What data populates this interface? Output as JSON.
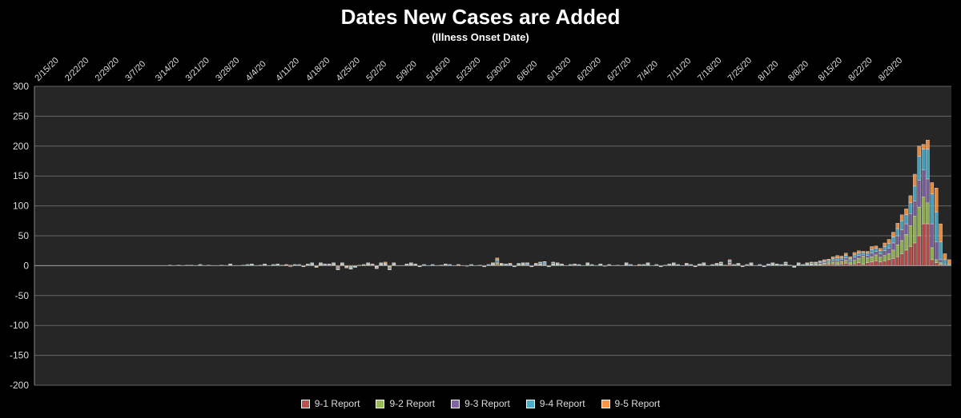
{
  "chart_data": {
    "type": "bar",
    "stacked": true,
    "title": "Dates New Cases are Added",
    "subtitle": "(Illness Onset Date)",
    "xlabel": "",
    "ylabel": "",
    "ylim": [
      -200,
      300
    ],
    "yticks": [
      300,
      250,
      200,
      150,
      100,
      50,
      0,
      -50,
      -100,
      -150,
      -200
    ],
    "grid": true,
    "legend_position": "bottom",
    "x_tick_labels": [
      "2/15/20",
      "2/22/20",
      "2/29/20",
      "3/7/20",
      "3/14/20",
      "3/21/20",
      "3/28/20",
      "4/4/20",
      "4/11/20",
      "4/18/20",
      "4/25/20",
      "5/2/20",
      "5/9/20",
      "5/16/20",
      "5/23/20",
      "5/30/20",
      "6/6/20",
      "6/13/20",
      "6/20/20",
      "6/27/20",
      "7/4/20",
      "7/11/20",
      "7/18/20",
      "7/25/20",
      "8/1/20",
      "8/8/20",
      "8/15/20",
      "8/22/20",
      "8/29/20"
    ],
    "start_label": "2/15/20",
    "series": [
      {
        "name": "9-1 Report",
        "color": "#c0504d"
      },
      {
        "name": "9-2 Report",
        "color": "#9bbb59"
      },
      {
        "name": "9-3 Report",
        "color": "#8064a2"
      },
      {
        "name": "9-4 Report",
        "color": "#4bacc6"
      },
      {
        "name": "9-5 Report",
        "color": "#f79646"
      }
    ],
    "stacks": [
      [
        0,
        0,
        0,
        0,
        0
      ],
      [
        0,
        0,
        0,
        0,
        0
      ],
      [
        0,
        0,
        0,
        0,
        0
      ],
      [
        0,
        0,
        0,
        0,
        0
      ],
      [
        0,
        0,
        0,
        0,
        0
      ],
      [
        0,
        0,
        0,
        0,
        0
      ],
      [
        0,
        0,
        0,
        0,
        0
      ],
      [
        0,
        0,
        0,
        0,
        0
      ],
      [
        0,
        0,
        0,
        0,
        0
      ],
      [
        0,
        0,
        0,
        0,
        0
      ],
      [
        0,
        0,
        0,
        0,
        0
      ],
      [
        0,
        0,
        0,
        0,
        0
      ],
      [
        0,
        0,
        0,
        0,
        0
      ],
      [
        0,
        0,
        0,
        0,
        0
      ],
      [
        0,
        0,
        0,
        0,
        0
      ],
      [
        0,
        0,
        0,
        0,
        0
      ],
      [
        0,
        0,
        0,
        0,
        0
      ],
      [
        0,
        0,
        0,
        0,
        0
      ],
      [
        0,
        0,
        0,
        0,
        0
      ],
      [
        0,
        0,
        0,
        0,
        0
      ],
      [
        0,
        0,
        0,
        0,
        0
      ],
      [
        0,
        0,
        0,
        0,
        0
      ],
      [
        0,
        0,
        0,
        0,
        0
      ],
      [
        0,
        0,
        0,
        0,
        0
      ],
      [
        0,
        0,
        0,
        0,
        0
      ],
      [
        0,
        0,
        0,
        0,
        0
      ],
      [
        0,
        0,
        0,
        0,
        0
      ],
      [
        0,
        0,
        0,
        0,
        0
      ],
      [
        0,
        0,
        0,
        0,
        0
      ],
      [
        0,
        0,
        0,
        0,
        0
      ],
      [
        0,
        0,
        0,
        0,
        0
      ],
      [
        0,
        1,
        0,
        0,
        0
      ],
      [
        0,
        0,
        0,
        0,
        0
      ],
      [
        0,
        1,
        0,
        0,
        0
      ],
      [
        0,
        0,
        0,
        0,
        0
      ],
      [
        0,
        1,
        0,
        0,
        0
      ],
      [
        0,
        0,
        0,
        1,
        0
      ],
      [
        0,
        0,
        0,
        0,
        0
      ],
      [
        0,
        0,
        1,
        1,
        0
      ],
      [
        0,
        0,
        0,
        0,
        0
      ],
      [
        0,
        0,
        0,
        1,
        0
      ],
      [
        0,
        0,
        0,
        0,
        0
      ],
      [
        0,
        0,
        0,
        0,
        0
      ],
      [
        1,
        0,
        0,
        0,
        0
      ],
      [
        0,
        0,
        0,
        0,
        0
      ],
      [
        0,
        1,
        0,
        1,
        1
      ],
      [
        0,
        0,
        0,
        0,
        0
      ],
      [
        0,
        0,
        0,
        0,
        0
      ],
      [
        0,
        1,
        0,
        0,
        0
      ],
      [
        0,
        0,
        1,
        1,
        0
      ],
      [
        0,
        1,
        0,
        1,
        1
      ],
      [
        0,
        0,
        0,
        0,
        0
      ],
      [
        0,
        0,
        0,
        1,
        0
      ],
      [
        0,
        1,
        0,
        1,
        1
      ],
      [
        0,
        0,
        0,
        0,
        0
      ],
      [
        1,
        0,
        0,
        1,
        0
      ],
      [
        0,
        0,
        1,
        1,
        1
      ],
      [
        0,
        1,
        0,
        0,
        0
      ],
      [
        0,
        0,
        0,
        1,
        1
      ],
      [
        -2,
        0,
        0,
        0,
        1
      ],
      [
        0,
        1,
        0,
        1,
        0
      ],
      [
        1,
        0,
        1,
        0,
        0
      ],
      [
        -1,
        0,
        0,
        0,
        -1
      ],
      [
        0,
        1,
        1,
        1,
        0
      ],
      [
        1,
        1,
        1,
        1,
        1
      ],
      [
        -1,
        -1,
        0,
        0,
        -1
      ],
      [
        1,
        1,
        1,
        1,
        1
      ],
      [
        0,
        1,
        1,
        1,
        0
      ],
      [
        1,
        0,
        1,
        0,
        1
      ],
      [
        1,
        1,
        1,
        1,
        1
      ],
      [
        -2,
        -1,
        -2,
        -1,
        -1
      ],
      [
        1,
        1,
        1,
        1,
        1
      ],
      [
        -1,
        -1,
        -1,
        0,
        -1
      ],
      [
        -1,
        -2,
        -1,
        -1,
        -1
      ],
      [
        -1,
        -1,
        0,
        -1,
        0
      ],
      [
        0,
        0,
        0,
        1,
        0
      ],
      [
        1,
        0,
        0,
        0,
        1
      ],
      [
        1,
        1,
        1,
        1,
        1
      ],
      [
        1,
        0,
        1,
        0,
        1
      ],
      [
        -1,
        -1,
        -1,
        -1,
        -1
      ],
      [
        1,
        1,
        1,
        1,
        1
      ],
      [
        1,
        1,
        1,
        1,
        2
      ],
      [
        -1,
        -2,
        -2,
        -1,
        -1
      ],
      [
        1,
        1,
        1,
        1,
        1
      ],
      [
        0,
        0,
        0,
        0,
        0
      ],
      [
        0,
        0,
        0,
        0,
        0
      ],
      [
        0,
        1,
        0,
        1,
        1
      ],
      [
        1,
        1,
        1,
        1,
        1
      ],
      [
        0,
        1,
        0,
        1,
        1
      ],
      [
        0,
        0,
        -1,
        0,
        -1
      ],
      [
        0,
        1,
        0,
        1,
        0
      ],
      [
        0,
        0,
        0,
        0,
        0
      ],
      [
        0,
        1,
        0,
        1,
        0
      ],
      [
        0,
        0,
        0,
        0,
        0
      ],
      [
        0,
        0,
        0,
        1,
        0
      ],
      [
        1,
        0,
        1,
        0,
        1
      ],
      [
        0,
        1,
        0,
        1,
        0
      ],
      [
        0,
        0,
        0,
        0,
        0
      ],
      [
        0,
        1,
        0,
        0,
        1
      ],
      [
        0,
        0,
        0,
        0,
        0
      ],
      [
        -1,
        0,
        0,
        0,
        0
      ],
      [
        0,
        1,
        0,
        1,
        0
      ],
      [
        0,
        0,
        0,
        0,
        0
      ],
      [
        0,
        1,
        0,
        0,
        0
      ],
      [
        -1,
        0,
        0,
        0,
        -1
      ],
      [
        0,
        1,
        0,
        1,
        0
      ],
      [
        1,
        1,
        1,
        1,
        1
      ],
      [
        2,
        3,
        3,
        2,
        3
      ],
      [
        1,
        1,
        0,
        1,
        1
      ],
      [
        0,
        1,
        1,
        1,
        0
      ],
      [
        0,
        1,
        1,
        1,
        1
      ],
      [
        -1,
        0,
        0,
        -1,
        0
      ],
      [
        1,
        1,
        1,
        1,
        0
      ],
      [
        1,
        1,
        1,
        1,
        1
      ],
      [
        0,
        1,
        1,
        2,
        1
      ],
      [
        -1,
        0,
        0,
        0,
        -1
      ],
      [
        0,
        1,
        1,
        1,
        1
      ],
      [
        1,
        1,
        1,
        2,
        1
      ],
      [
        1,
        1,
        2,
        2,
        1
      ],
      [
        -1,
        0,
        0,
        -1,
        0
      ],
      [
        1,
        1,
        1,
        2,
        1
      ],
      [
        1,
        1,
        1,
        1,
        1
      ],
      [
        0,
        1,
        0,
        1,
        1
      ],
      [
        0,
        0,
        0,
        0,
        0
      ],
      [
        0,
        1,
        0,
        1,
        0
      ],
      [
        1,
        0,
        1,
        0,
        1
      ],
      [
        0,
        1,
        0,
        1,
        0
      ],
      [
        0,
        0,
        0,
        0,
        0
      ],
      [
        1,
        1,
        1,
        1,
        1
      ],
      [
        0,
        1,
        0,
        1,
        0
      ],
      [
        0,
        0,
        0,
        0,
        0
      ],
      [
        0,
        1,
        0,
        1,
        1
      ],
      [
        -1,
        0,
        0,
        0,
        0
      ],
      [
        0,
        1,
        0,
        1,
        0
      ],
      [
        0,
        0,
        0,
        0,
        0
      ],
      [
        0,
        1,
        0,
        0,
        0
      ],
      [
        0,
        0,
        0,
        0,
        0
      ],
      [
        1,
        1,
        1,
        1,
        1
      ],
      [
        0,
        1,
        0,
        1,
        0
      ],
      [
        0,
        0,
        0,
        0,
        0
      ],
      [
        0,
        1,
        0,
        0,
        1
      ],
      [
        0,
        1,
        0,
        1,
        0
      ],
      [
        1,
        1,
        1,
        1,
        1
      ],
      [
        0,
        0,
        0,
        0,
        0
      ],
      [
        0,
        1,
        0,
        1,
        0
      ],
      [
        -1,
        0,
        0,
        -1,
        0
      ],
      [
        0,
        1,
        0,
        0,
        0
      ],
      [
        0,
        1,
        1,
        1,
        0
      ],
      [
        1,
        1,
        1,
        1,
        1
      ],
      [
        0,
        1,
        0,
        1,
        0
      ],
      [
        0,
        0,
        0,
        0,
        0
      ],
      [
        0,
        1,
        1,
        1,
        1
      ],
      [
        0,
        1,
        0,
        1,
        0
      ],
      [
        -1,
        0,
        0,
        0,
        -1
      ],
      [
        0,
        1,
        1,
        1,
        0
      ],
      [
        1,
        1,
        1,
        1,
        1
      ],
      [
        0,
        0,
        0,
        0,
        0
      ],
      [
        0,
        1,
        0,
        1,
        0
      ],
      [
        0,
        1,
        1,
        1,
        1
      ],
      [
        1,
        1,
        1,
        2,
        1
      ],
      [
        0,
        1,
        0,
        0,
        0
      ],
      [
        2,
        2,
        2,
        2,
        2
      ],
      [
        0,
        1,
        0,
        1,
        0
      ],
      [
        0,
        1,
        1,
        1,
        1
      ],
      [
        -1,
        0,
        0,
        0,
        -1
      ],
      [
        0,
        1,
        0,
        1,
        0
      ],
      [
        1,
        1,
        1,
        1,
        1
      ],
      [
        0,
        0,
        0,
        0,
        0
      ],
      [
        0,
        1,
        0,
        1,
        0
      ],
      [
        -1,
        0,
        0,
        -1,
        0
      ],
      [
        0,
        1,
        1,
        1,
        0
      ],
      [
        1,
        1,
        1,
        1,
        1
      ],
      [
        0,
        1,
        0,
        1,
        1
      ],
      [
        0,
        1,
        0,
        1,
        0
      ],
      [
        1,
        1,
        1,
        2,
        1
      ],
      [
        0,
        1,
        0,
        0,
        0
      ],
      [
        -1,
        -1,
        0,
        -1,
        0
      ],
      [
        1,
        1,
        1,
        1,
        1
      ],
      [
        0,
        1,
        0,
        1,
        0
      ],
      [
        1,
        1,
        1,
        1,
        1
      ],
      [
        1,
        1,
        1,
        2,
        1
      ],
      [
        1,
        2,
        1,
        1,
        1
      ],
      [
        1,
        2,
        2,
        2,
        1
      ],
      [
        2,
        2,
        2,
        2,
        2
      ],
      [
        2,
        3,
        2,
        2,
        2
      ],
      [
        3,
        3,
        3,
        3,
        3
      ],
      [
        2,
        4,
        3,
        4,
        4
      ],
      [
        3,
        4,
        3,
        3,
        3
      ],
      [
        4,
        5,
        4,
        4,
        4
      ],
      [
        2,
        4,
        3,
        3,
        3
      ],
      [
        3,
        6,
        5,
        4,
        4
      ],
      [
        5,
        7,
        5,
        4,
        4
      ],
      [
        2,
        14,
        3,
        3,
        2
      ],
      [
        5,
        8,
        4,
        4,
        3
      ],
      [
        6,
        9,
        6,
        6,
        5
      ],
      [
        8,
        10,
        6,
        5,
        4
      ],
      [
        6,
        8,
        6,
        5,
        4
      ],
      [
        8,
        9,
        8,
        7,
        6
      ],
      [
        10,
        10,
        9,
        8,
        7
      ],
      [
        12,
        14,
        12,
        10,
        8
      ],
      [
        15,
        20,
        15,
        12,
        9
      ],
      [
        20,
        22,
        18,
        15,
        10
      ],
      [
        26,
        26,
        18,
        15,
        10
      ],
      [
        32,
        35,
        20,
        18,
        12
      ],
      [
        38,
        45,
        25,
        25,
        20
      ],
      [
        50,
        48,
        45,
        40,
        17
      ],
      [
        70,
        45,
        45,
        35,
        8
      ],
      [
        70,
        35,
        40,
        50,
        15
      ],
      [
        10,
        20,
        40,
        50,
        19
      ],
      [
        5,
        5,
        30,
        50,
        40
      ],
      [
        2,
        3,
        5,
        30,
        30
      ],
      [
        0,
        0,
        2,
        8,
        10
      ],
      [
        0,
        0,
        0,
        2,
        8
      ]
    ]
  },
  "legend": [
    {
      "label": "9-1 Report",
      "color": "#c0504d"
    },
    {
      "label": "9-2 Report",
      "color": "#9bbb59"
    },
    {
      "label": "9-3 Report",
      "color": "#8064a2"
    },
    {
      "label": "9-4 Report",
      "color": "#4bacc6"
    },
    {
      "label": "9-5 Report",
      "color": "#f79646"
    }
  ]
}
